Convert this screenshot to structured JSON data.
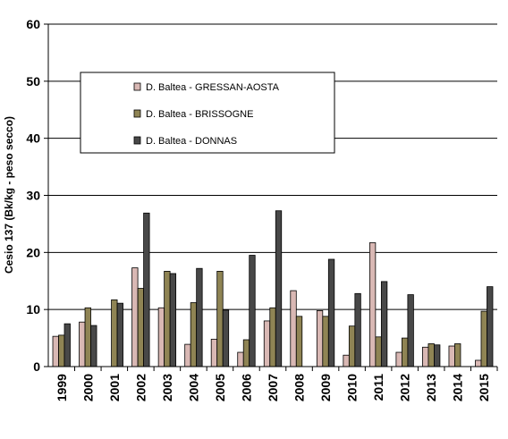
{
  "chart_data": {
    "type": "bar",
    "title": "",
    "xlabel": "",
    "ylabel": "Cesio 137  (Bk/kg - peso secco)",
    "ylim": [
      0,
      60
    ],
    "yticks": [
      0,
      10,
      20,
      30,
      40,
      50,
      60
    ],
    "grid": true,
    "legend_position": "top-left",
    "categories": [
      "1999",
      "2000",
      "2001",
      "2002",
      "2003",
      "2004",
      "2005",
      "2006",
      "2007",
      "2008",
      "2009",
      "2010",
      "2011",
      "2012",
      "2013",
      "2014",
      "2015"
    ],
    "series": [
      {
        "name": "D. Baltea - GRESSAN-AOSTA",
        "color": "#d9b8b4",
        "values": [
          5.3,
          7.8,
          null,
          17.3,
          10.3,
          3.9,
          4.8,
          2.5,
          8.0,
          13.3,
          9.8,
          2.0,
          21.7,
          2.5,
          3.4,
          3.6,
          1.1
        ]
      },
      {
        "name": "D. Baltea - BRISSOGNE",
        "color": "#8f8454",
        "values": [
          5.5,
          10.3,
          11.7,
          13.7,
          16.7,
          11.2,
          16.7,
          4.7,
          10.3,
          8.8,
          8.8,
          7.1,
          5.2,
          5.0,
          4.0,
          4.0,
          9.7
        ]
      },
      {
        "name": "D. Baltea - DONNAS",
        "color": "#484848",
        "values": [
          7.5,
          7.2,
          11.1,
          26.9,
          16.3,
          17.2,
          9.9,
          19.5,
          27.3,
          null,
          18.8,
          12.8,
          14.9,
          12.6,
          3.8,
          null,
          14.0
        ]
      }
    ]
  }
}
